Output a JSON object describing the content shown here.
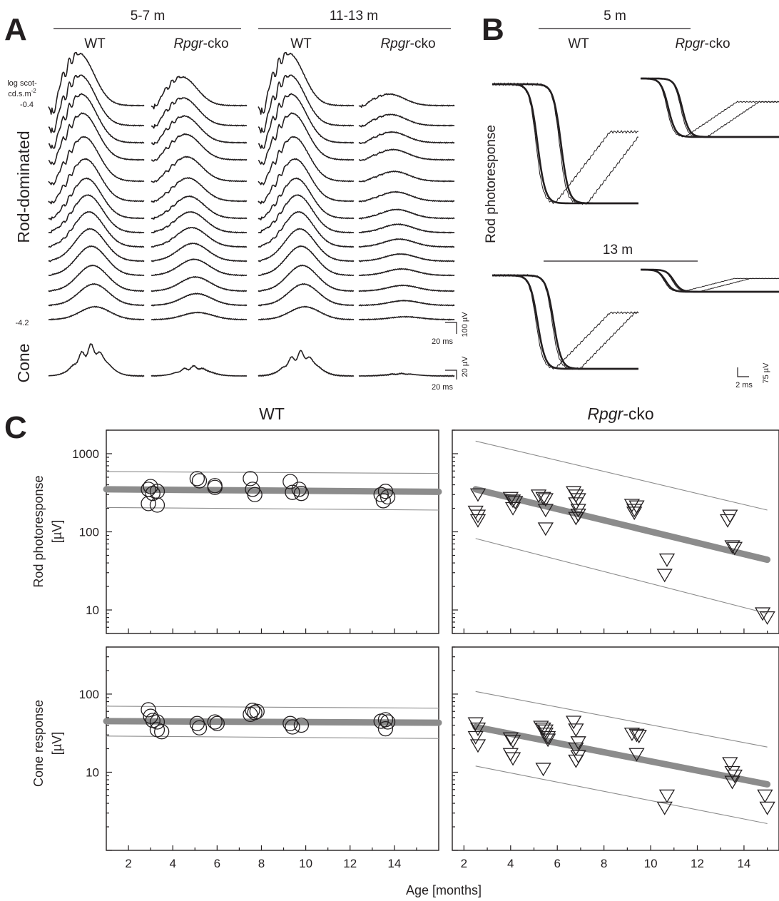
{
  "panel_a": {
    "letter": "A",
    "group_labels": [
      "5-7 m",
      "11-13 m"
    ],
    "wt": "WT",
    "cko_italic": "Rpgr",
    "cko_suffix": "-cko",
    "intensity_label_line1": "log scot-",
    "intensity_label_line2": "cd.s.m",
    "intensity_label_sup": "-2",
    "intensity_high": "-0.4",
    "intensity_low": "-4.2",
    "row_rod": "Rod-dominated",
    "row_cone": "Cone",
    "scale_rod_time": "20 ms",
    "scale_rod_amp": "100 µV",
    "scale_cone_time": "20 ms",
    "scale_cone_amp": "20 µV"
  },
  "panel_b": {
    "letter": "B",
    "age_top": "5 m",
    "age_bottom": "13 m",
    "wt": "WT",
    "cko_italic": "Rpgr",
    "cko_suffix": "-cko",
    "ylabel": "Rod photoresponse",
    "scale_time": "2 ms",
    "scale_amp": "75 µV"
  },
  "panel_c": {
    "letter": "C",
    "col_wt": "WT",
    "col_cko_italic": "Rpgr",
    "col_cko_suffix": "-cko",
    "xlabel": "Age [months]",
    "rod_ylabel_line1": "Rod photoresponse",
    "rod_ylabel_line2": "[µV]",
    "cone_ylabel_line1": "Cone response",
    "cone_ylabel_line2": "[µV]"
  },
  "chart_data": [
    {
      "type": "scatter",
      "panel": "C-rod-WT",
      "log_y": true,
      "xlim": [
        1,
        16
      ],
      "ylim": [
        5,
        2000
      ],
      "xticks": [
        2,
        4,
        6,
        8,
        10,
        12,
        14
      ],
      "yticks": [
        10,
        100,
        1000
      ],
      "marker": "circle",
      "points": [
        [
          2.9,
          350
        ],
        [
          3.0,
          380
        ],
        [
          3.1,
          310
        ],
        [
          2.9,
          230
        ],
        [
          3.3,
          330
        ],
        [
          3.3,
          220
        ],
        [
          5.1,
          480
        ],
        [
          5.2,
          450
        ],
        [
          5.9,
          390
        ],
        [
          5.9,
          370
        ],
        [
          7.5,
          480
        ],
        [
          7.6,
          350
        ],
        [
          7.7,
          300
        ],
        [
          9.3,
          440
        ],
        [
          9.4,
          320
        ],
        [
          9.7,
          350
        ],
        [
          9.8,
          310
        ],
        [
          13.4,
          300
        ],
        [
          13.6,
          330
        ],
        [
          13.7,
          280
        ],
        [
          13.5,
          250
        ]
      ],
      "fit": [
        [
          1,
          350
        ],
        [
          16,
          325
        ]
      ],
      "band_upper": [
        [
          1,
          590
        ],
        [
          16,
          560
        ]
      ],
      "band_lower": [
        [
          1,
          205
        ],
        [
          16,
          190
        ]
      ]
    },
    {
      "type": "scatter",
      "panel": "C-rod-Rpgr-cko",
      "log_y": true,
      "xlim": [
        1.5,
        15.5
      ],
      "ylim": [
        5,
        2000
      ],
      "xticks": [
        2,
        4,
        6,
        8,
        10,
        12,
        14
      ],
      "yticks": [
        10,
        100,
        1000
      ],
      "marker": "triangle-down",
      "points": [
        [
          2.6,
          300
        ],
        [
          2.5,
          180
        ],
        [
          2.6,
          160
        ],
        [
          2.6,
          140
        ],
        [
          4.0,
          270
        ],
        [
          4.1,
          250
        ],
        [
          4.2,
          240
        ],
        [
          4.1,
          200
        ],
        [
          5.2,
          290
        ],
        [
          5.4,
          270
        ],
        [
          5.5,
          260
        ],
        [
          5.5,
          190
        ],
        [
          5.5,
          110
        ],
        [
          6.7,
          320
        ],
        [
          6.8,
          290
        ],
        [
          6.9,
          260
        ],
        [
          6.8,
          230
        ],
        [
          6.9,
          190
        ],
        [
          6.9,
          165
        ],
        [
          6.8,
          150
        ],
        [
          9.2,
          220
        ],
        [
          9.4,
          210
        ],
        [
          9.3,
          190
        ],
        [
          9.3,
          175
        ],
        [
          10.7,
          44
        ],
        [
          10.6,
          28
        ],
        [
          13.4,
          160
        ],
        [
          13.3,
          140
        ],
        [
          13.5,
          65
        ],
        [
          13.6,
          62
        ],
        [
          14.8,
          9
        ],
        [
          15.0,
          8
        ]
      ],
      "fit": [
        [
          2.5,
          350
        ],
        [
          15,
          44
        ]
      ],
      "band_upper": [
        [
          2.5,
          1450
        ],
        [
          15,
          190
        ]
      ],
      "band_lower": [
        [
          2.5,
          82
        ],
        [
          15,
          9
        ]
      ]
    },
    {
      "type": "scatter",
      "panel": "C-cone-WT",
      "log_y": true,
      "xlim": [
        1,
        16
      ],
      "ylim": [
        1,
        400
      ],
      "xticks": [
        2,
        4,
        6,
        8,
        10,
        12,
        14
      ],
      "yticks": [
        10,
        100
      ],
      "marker": "circle",
      "points": [
        [
          2.9,
          63
        ],
        [
          3.0,
          52
        ],
        [
          3.1,
          46
        ],
        [
          3.3,
          44
        ],
        [
          3.3,
          35
        ],
        [
          3.5,
          33
        ],
        [
          5.1,
          42
        ],
        [
          5.2,
          37
        ],
        [
          5.9,
          44
        ],
        [
          6.0,
          42
        ],
        [
          7.5,
          55
        ],
        [
          7.6,
          62
        ],
        [
          7.7,
          58
        ],
        [
          7.8,
          60
        ],
        [
          9.3,
          42
        ],
        [
          9.4,
          38
        ],
        [
          9.8,
          40
        ],
        [
          13.4,
          45
        ],
        [
          13.6,
          47
        ],
        [
          13.7,
          44
        ],
        [
          13.6,
          36
        ]
      ],
      "fit": [
        [
          1,
          45
        ],
        [
          16,
          43
        ]
      ],
      "band_upper": [
        [
          1,
          70
        ],
        [
          16,
          66
        ]
      ],
      "band_lower": [
        [
          1,
          29
        ],
        [
          16,
          27
        ]
      ]
    },
    {
      "type": "scatter",
      "panel": "C-cone-Rpgr-cko",
      "log_y": true,
      "xlim": [
        1.5,
        15.5
      ],
      "ylim": [
        1,
        400
      ],
      "xticks": [
        2,
        4,
        6,
        8,
        10,
        12,
        14
      ],
      "yticks": [
        10,
        100
      ],
      "marker": "triangle-down",
      "points": [
        [
          2.5,
          42
        ],
        [
          2.6,
          36
        ],
        [
          2.5,
          28
        ],
        [
          2.6,
          22
        ],
        [
          4.0,
          27
        ],
        [
          4.1,
          25
        ],
        [
          4.0,
          17
        ],
        [
          4.1,
          15
        ],
        [
          5.3,
          38
        ],
        [
          5.4,
          36
        ],
        [
          5.5,
          34
        ],
        [
          5.5,
          31
        ],
        [
          5.6,
          28
        ],
        [
          5.6,
          26
        ],
        [
          5.4,
          11
        ],
        [
          6.7,
          44
        ],
        [
          6.8,
          35
        ],
        [
          6.9,
          24
        ],
        [
          6.8,
          20
        ],
        [
          6.9,
          16
        ],
        [
          6.8,
          14
        ],
        [
          9.2,
          31
        ],
        [
          9.4,
          30
        ],
        [
          9.5,
          29
        ],
        [
          9.4,
          17
        ],
        [
          10.7,
          5
        ],
        [
          10.6,
          3.5
        ],
        [
          13.4,
          13
        ],
        [
          13.5,
          10
        ],
        [
          13.6,
          9
        ],
        [
          13.5,
          7.5
        ],
        [
          14.9,
          5
        ],
        [
          15.0,
          3.5
        ]
      ],
      "fit": [
        [
          2.5,
          38
        ],
        [
          15,
          7
        ]
      ],
      "band_upper": [
        [
          2.5,
          108
        ],
        [
          15,
          21
        ]
      ],
      "band_lower": [
        [
          2.5,
          12
        ],
        [
          15,
          2.2
        ]
      ]
    }
  ]
}
